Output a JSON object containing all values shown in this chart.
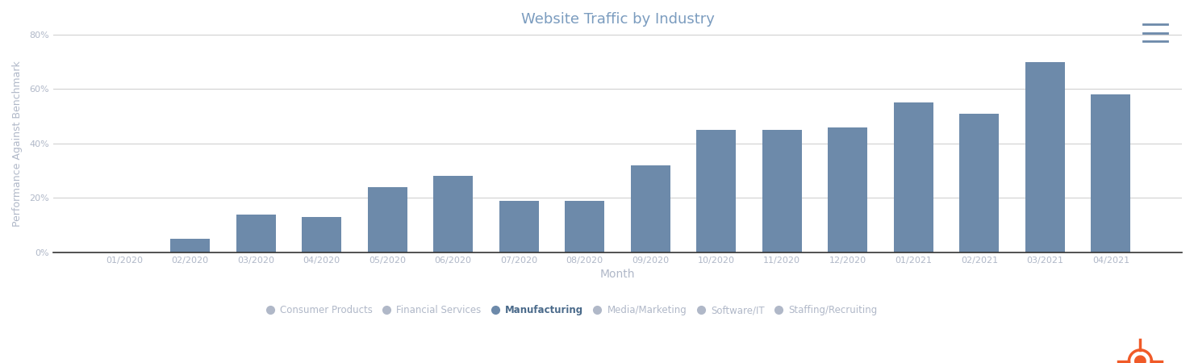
{
  "title": "Website Traffic by Industry",
  "xlabel": "Month",
  "ylabel": "Performance Against Benchmark",
  "bar_color": "#6d8aaa",
  "background_color": "#ffffff",
  "grid_color": "#cccccc",
  "axis_color": "#cccccc",
  "title_color": "#7b9cbf",
  "label_color": "#b0b8c8",
  "categories": [
    "01/2020",
    "02/2020",
    "03/2020",
    "04/2020",
    "05/2020",
    "06/2020",
    "07/2020",
    "08/2020",
    "09/2020",
    "10/2020",
    "11/2020",
    "12/2020",
    "01/2021",
    "02/2021",
    "03/2021",
    "04/2021"
  ],
  "values": [
    0,
    5,
    14,
    13,
    24,
    28,
    19,
    19,
    32,
    45,
    45,
    46,
    55,
    51,
    70,
    58
  ],
  "ylim": [
    0,
    80
  ],
  "yticks": [
    0,
    20,
    40,
    60,
    80
  ],
  "ytick_labels": [
    "0%",
    "20%",
    "40%",
    "60%",
    "80%"
  ],
  "legend_items": [
    {
      "label": "Consumer Products",
      "color": "#b0b8c8",
      "bold": false
    },
    {
      "label": "Financial Services",
      "color": "#b0b8c8",
      "bold": false
    },
    {
      "label": "Manufacturing",
      "color": "#6d8aaa",
      "bold": true
    },
    {
      "label": "Media/Marketing",
      "color": "#b0b8c8",
      "bold": false
    },
    {
      "label": "Software/IT",
      "color": "#b0b8c8",
      "bold": false
    },
    {
      "label": "Staffing/Recruiting",
      "color": "#b0b8c8",
      "bold": false
    }
  ]
}
